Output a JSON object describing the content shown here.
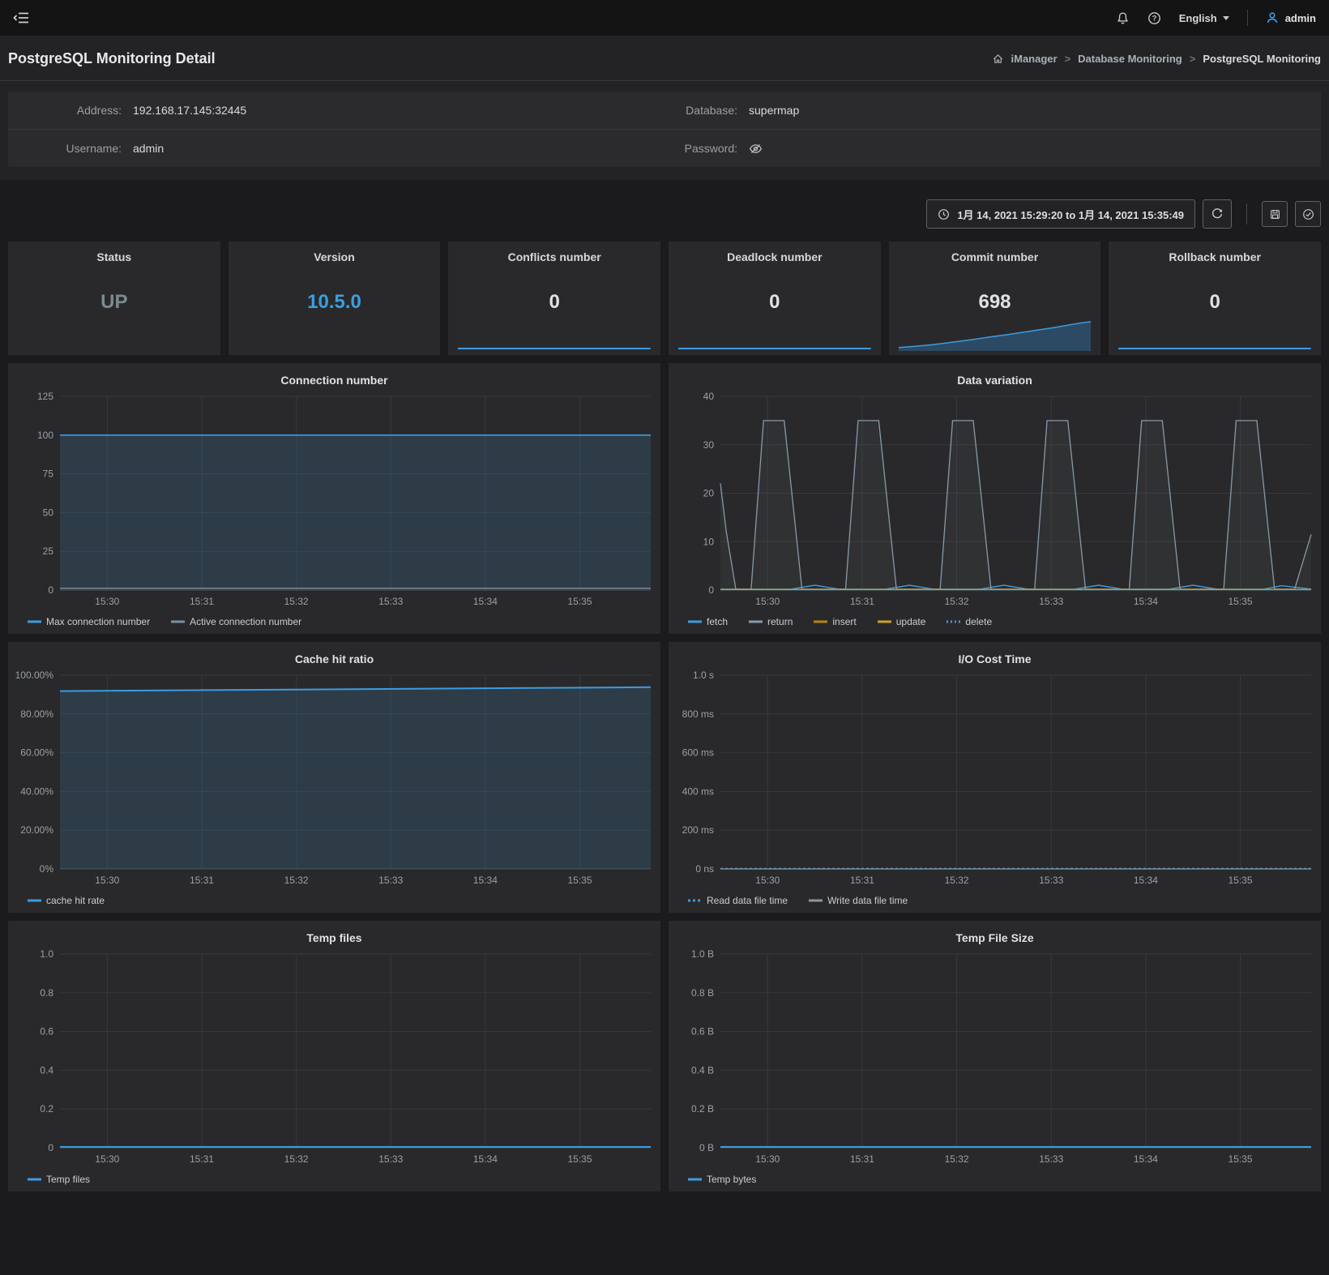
{
  "topbar": {
    "language": "English",
    "user": "admin"
  },
  "header": {
    "title": "PostgreSQL Monitoring Detail",
    "separator": ">",
    "breadcrumb": [
      "iManager",
      "Database Monitoring",
      "PostgreSQL Monitoring"
    ]
  },
  "info": {
    "rows": [
      {
        "label": "Address:",
        "value": "192.168.17.145:32445"
      },
      {
        "label": "Database:",
        "value": "supermap"
      },
      {
        "label": "Username:",
        "value": "admin"
      },
      {
        "label": "Password:",
        "value": ""
      }
    ]
  },
  "toolbar": {
    "time_range": "1月 14, 2021 15:29:20 to 1月 14, 2021 15:35:49"
  },
  "stats": [
    {
      "label": "Status",
      "value": "UP",
      "value_color": "#7b8a91",
      "spark": "none"
    },
    {
      "label": "Version",
      "value": "10.5.0",
      "value_color": "#3a9fe0",
      "spark": "none"
    },
    {
      "label": "Conflicts number",
      "value": "0",
      "value_color": "#dfe2e4",
      "spark": "line"
    },
    {
      "label": "Deadlock number",
      "value": "0",
      "value_color": "#dfe2e4",
      "spark": "line"
    },
    {
      "label": "Commit number",
      "value": "698",
      "value_color": "#dfe2e4",
      "spark": "area"
    },
    {
      "label": "Rollback number",
      "value": "0",
      "value_color": "#dfe2e4",
      "spark": "line"
    }
  ],
  "accent_color": "#3d9be0",
  "chart_data": [
    {
      "type": "area",
      "title": "Connection number",
      "ylim": [
        0,
        125
      ],
      "yticks": [
        {
          "v": 0,
          "label": "0"
        },
        {
          "v": 25,
          "label": "25"
        },
        {
          "v": 50,
          "label": "50"
        },
        {
          "v": 75,
          "label": "75"
        },
        {
          "v": 100,
          "label": "100"
        },
        {
          "v": 125,
          "label": "125"
        }
      ],
      "xticks": [
        {
          "f": 0.08,
          "label": "15:30"
        },
        {
          "f": 0.24,
          "label": "15:31"
        },
        {
          "f": 0.4,
          "label": "15:32"
        },
        {
          "f": 0.56,
          "label": "15:33"
        },
        {
          "f": 0.72,
          "label": "15:34"
        },
        {
          "f": 0.88,
          "label": "15:35"
        }
      ],
      "series": [
        {
          "name": "Max connection number",
          "color": "#3d9be0",
          "width": 1.6,
          "fill": "rgba(62,126,176,0.22)",
          "points": [
            [
              0,
              100
            ],
            [
              1,
              100
            ]
          ]
        },
        {
          "name": "Active connection number",
          "color": "#7d8e9c",
          "width": 1.4,
          "points": [
            [
              0,
              1.2
            ],
            [
              1,
              1.2
            ]
          ]
        }
      ]
    },
    {
      "type": "line",
      "title": "Data variation",
      "ylim": [
        0,
        40
      ],
      "yticks": [
        {
          "v": 0,
          "label": "0"
        },
        {
          "v": 10,
          "label": "10"
        },
        {
          "v": 20,
          "label": "20"
        },
        {
          "v": 30,
          "label": "30"
        },
        {
          "v": 40,
          "label": "40"
        }
      ],
      "xticks": [
        {
          "f": 0.08,
          "label": "15:30"
        },
        {
          "f": 0.24,
          "label": "15:31"
        },
        {
          "f": 0.4,
          "label": "15:32"
        },
        {
          "f": 0.56,
          "label": "15:33"
        },
        {
          "f": 0.72,
          "label": "15:34"
        },
        {
          "f": 0.88,
          "label": "15:35"
        }
      ],
      "series": [
        {
          "name": "fetch",
          "color": "#3d9be0",
          "width": 1.4,
          "points": [
            [
              0,
              0.2
            ],
            [
              0.12,
              0.2
            ],
            [
              0.16,
              1.0
            ],
            [
              0.2,
              0.2
            ],
            [
              0.28,
              0.2
            ],
            [
              0.32,
              1.0
            ],
            [
              0.36,
              0.2
            ],
            [
              0.44,
              0.2
            ],
            [
              0.48,
              1.0
            ],
            [
              0.52,
              0.2
            ],
            [
              0.6,
              0.2
            ],
            [
              0.64,
              1.0
            ],
            [
              0.68,
              0.2
            ],
            [
              0.76,
              0.2
            ],
            [
              0.8,
              1.0
            ],
            [
              0.84,
              0.2
            ],
            [
              0.92,
              0.2
            ],
            [
              0.95,
              0.9
            ],
            [
              1,
              0.2
            ]
          ]
        },
        {
          "name": "return",
          "color": "#8899a8",
          "width": 1.3,
          "fill": "rgba(130,150,170,0.07)",
          "points": [
            [
              0,
              22
            ],
            [
              0.01,
              12
            ],
            [
              0.026,
              0.2
            ],
            [
              0.052,
              0.2
            ],
            [
              0.073,
              35
            ],
            [
              0.108,
              35
            ],
            [
              0.138,
              0.2
            ],
            [
              0.212,
              0.2
            ],
            [
              0.233,
              35
            ],
            [
              0.268,
              35
            ],
            [
              0.298,
              0.2
            ],
            [
              0.372,
              0.2
            ],
            [
              0.393,
              35
            ],
            [
              0.428,
              35
            ],
            [
              0.458,
              0.2
            ],
            [
              0.532,
              0.2
            ],
            [
              0.553,
              35
            ],
            [
              0.588,
              35
            ],
            [
              0.618,
              0.2
            ],
            [
              0.692,
              0.2
            ],
            [
              0.713,
              35
            ],
            [
              0.748,
              35
            ],
            [
              0.778,
              0.2
            ],
            [
              0.852,
              0.2
            ],
            [
              0.873,
              35
            ],
            [
              0.908,
              35
            ],
            [
              0.938,
              0.2
            ],
            [
              0.972,
              0.2
            ],
            [
              1,
              11.5
            ]
          ]
        },
        {
          "name": "insert",
          "color": "#b8860b",
          "width": 1.3,
          "points": [
            [
              0,
              0.15
            ],
            [
              1,
              0.15
            ]
          ]
        },
        {
          "name": "update",
          "color": "#c9a227",
          "width": 1.3,
          "points": [
            [
              0,
              0.1
            ],
            [
              1,
              0.1
            ]
          ]
        },
        {
          "name": "delete",
          "color": "#3d9be0",
          "width": 1.3,
          "dash": "2,3",
          "points": [
            [
              0,
              0.05
            ],
            [
              1,
              0.05
            ]
          ]
        }
      ]
    },
    {
      "type": "area",
      "title": "Cache hit ratio",
      "ylim": [
        0,
        100
      ],
      "yticks": [
        {
          "v": 0,
          "label": "0%"
        },
        {
          "v": 20,
          "label": "20.00%"
        },
        {
          "v": 40,
          "label": "40.00%"
        },
        {
          "v": 60,
          "label": "60.00%"
        },
        {
          "v": 80,
          "label": "80.00%"
        },
        {
          "v": 100,
          "label": "100.00%"
        }
      ],
      "xticks": [
        {
          "f": 0.08,
          "label": "15:30"
        },
        {
          "f": 0.24,
          "label": "15:31"
        },
        {
          "f": 0.4,
          "label": "15:32"
        },
        {
          "f": 0.56,
          "label": "15:33"
        },
        {
          "f": 0.72,
          "label": "15:34"
        },
        {
          "f": 0.88,
          "label": "15:35"
        }
      ],
      "series": [
        {
          "name": "cache hit rate",
          "color": "#3d9be0",
          "width": 2,
          "fill": "rgba(62,126,176,0.22)",
          "points": [
            [
              0,
              91.8
            ],
            [
              0.25,
              92.3
            ],
            [
              0.5,
              92.8
            ],
            [
              0.75,
              93.3
            ],
            [
              1,
              93.8
            ]
          ]
        }
      ]
    },
    {
      "type": "line",
      "title": "I/O Cost Time",
      "ylim": [
        0,
        1000
      ],
      "yticks": [
        {
          "v": 0,
          "label": "0 ns"
        },
        {
          "v": 200,
          "label": "200 ms"
        },
        {
          "v": 400,
          "label": "400 ms"
        },
        {
          "v": 600,
          "label": "600 ms"
        },
        {
          "v": 800,
          "label": "800 ms"
        },
        {
          "v": 1000,
          "label": "1.0 s"
        }
      ],
      "xticks": [
        {
          "f": 0.08,
          "label": "15:30"
        },
        {
          "f": 0.24,
          "label": "15:31"
        },
        {
          "f": 0.4,
          "label": "15:32"
        },
        {
          "f": 0.56,
          "label": "15:33"
        },
        {
          "f": 0.72,
          "label": "15:34"
        },
        {
          "f": 0.88,
          "label": "15:35"
        }
      ],
      "series": [
        {
          "name": "Read data file time",
          "color": "#3d9be0",
          "width": 1.5,
          "dash": "3,3",
          "points": [
            [
              0,
              2
            ],
            [
              1,
              2
            ]
          ]
        },
        {
          "name": "Write data file time",
          "color": "#8899a8",
          "width": 1.3,
          "points": [
            [
              0,
              0
            ],
            [
              1,
              0
            ]
          ]
        }
      ]
    },
    {
      "type": "line",
      "title": "Temp files",
      "ylim": [
        0,
        1
      ],
      "yticks": [
        {
          "v": 0,
          "label": "0"
        },
        {
          "v": 0.2,
          "label": "0.2"
        },
        {
          "v": 0.4,
          "label": "0.4"
        },
        {
          "v": 0.6,
          "label": "0.6"
        },
        {
          "v": 0.8,
          "label": "0.8"
        },
        {
          "v": 1,
          "label": "1.0"
        }
      ],
      "xticks": [
        {
          "f": 0.08,
          "label": "15:30"
        },
        {
          "f": 0.24,
          "label": "15:31"
        },
        {
          "f": 0.4,
          "label": "15:32"
        },
        {
          "f": 0.56,
          "label": "15:33"
        },
        {
          "f": 0.72,
          "label": "15:34"
        },
        {
          "f": 0.88,
          "label": "15:35"
        }
      ],
      "series": [
        {
          "name": "Temp files",
          "color": "#3d9be0",
          "width": 2,
          "points": [
            [
              0,
              0.004
            ],
            [
              1,
              0.004
            ]
          ]
        }
      ]
    },
    {
      "type": "line",
      "title": "Temp File Size",
      "ylim": [
        0,
        1
      ],
      "yticks": [
        {
          "v": 0,
          "label": "0 B"
        },
        {
          "v": 0.2,
          "label": "0.2 B"
        },
        {
          "v": 0.4,
          "label": "0.4 B"
        },
        {
          "v": 0.6,
          "label": "0.6 B"
        },
        {
          "v": 0.8,
          "label": "0.8 B"
        },
        {
          "v": 1,
          "label": "1.0 B"
        }
      ],
      "xticks": [
        {
          "f": 0.08,
          "label": "15:30"
        },
        {
          "f": 0.24,
          "label": "15:31"
        },
        {
          "f": 0.4,
          "label": "15:32"
        },
        {
          "f": 0.56,
          "label": "15:33"
        },
        {
          "f": 0.72,
          "label": "15:34"
        },
        {
          "f": 0.88,
          "label": "15:35"
        }
      ],
      "series": [
        {
          "name": "Temp bytes",
          "color": "#3d9be0",
          "width": 2,
          "points": [
            [
              0,
              0.004
            ],
            [
              1,
              0.004
            ]
          ]
        }
      ]
    }
  ]
}
